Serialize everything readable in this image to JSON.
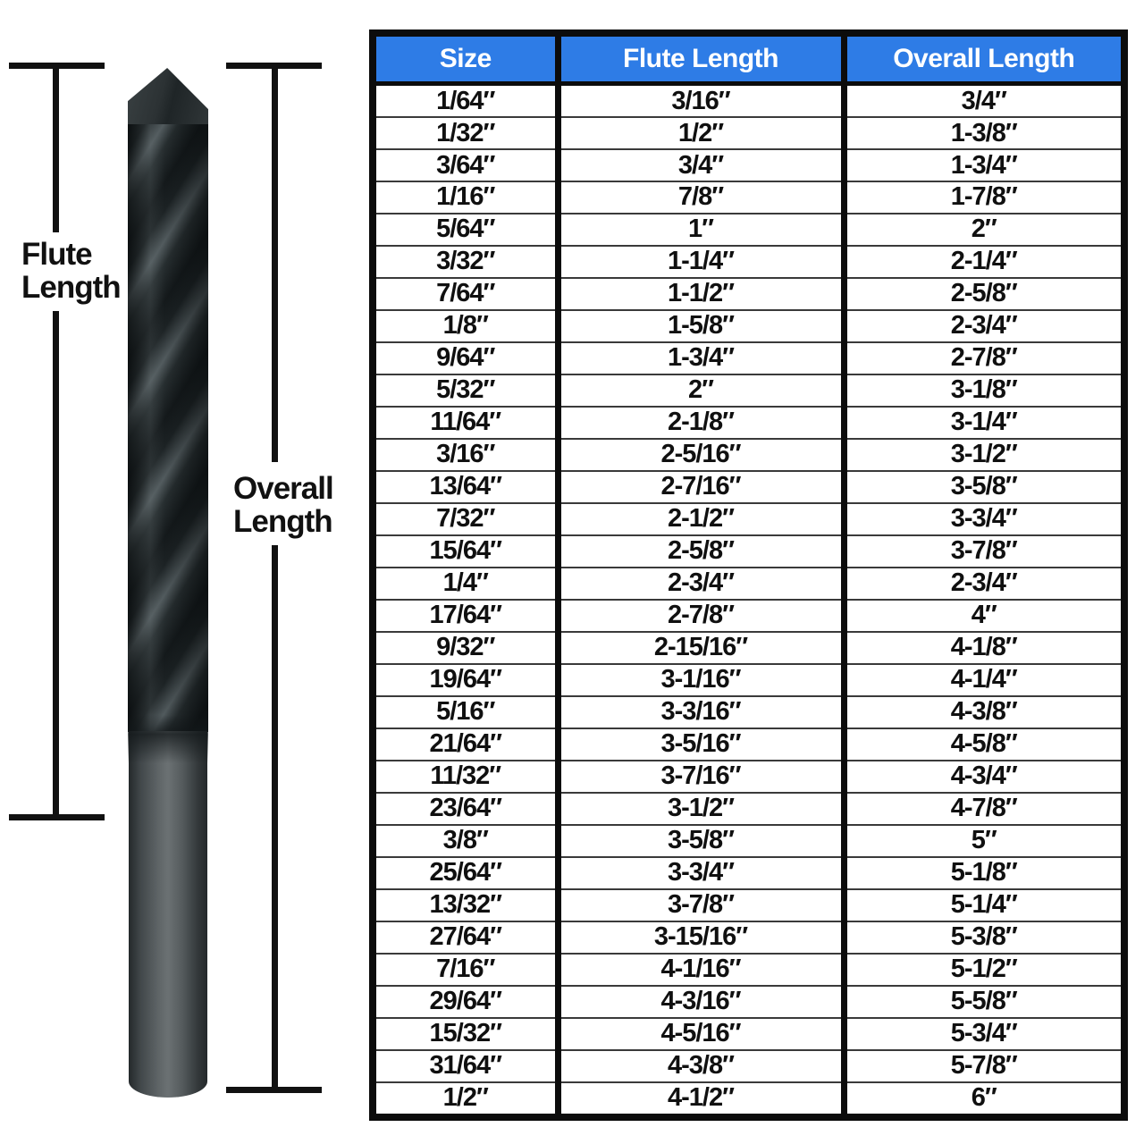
{
  "colors": {
    "header_bg": "#2e7ce6",
    "header_text": "#ffffff",
    "grid_border": "#0c0c0c",
    "row_line": "#3a3a3a",
    "dimension_line": "#111111"
  },
  "chart_data": {
    "type": "table",
    "columns": [
      "Size",
      "Flute Length",
      "Overall Length"
    ],
    "annotations": [
      "Flute Length",
      "Overall Length"
    ],
    "rows": [
      [
        "1/64″",
        "3/16″",
        "3/4″"
      ],
      [
        "1/32″",
        "1/2″",
        "1-3/8″"
      ],
      [
        "3/64″",
        "3/4″",
        "1-3/4″"
      ],
      [
        "1/16″",
        "7/8″",
        "1-7/8″"
      ],
      [
        "5/64″",
        "1″",
        "2″"
      ],
      [
        "3/32″",
        "1-1/4″",
        "2-1/4″"
      ],
      [
        "7/64″",
        "1-1/2″",
        "2-5/8″"
      ],
      [
        "1/8″",
        "1-5/8″",
        "2-3/4″"
      ],
      [
        "9/64″",
        "1-3/4″",
        "2-7/8″"
      ],
      [
        "5/32″",
        "2″",
        "3-1/8″"
      ],
      [
        "11/64″",
        "2-1/8″",
        "3-1/4″"
      ],
      [
        "3/16″",
        "2-5/16″",
        "3-1/2″"
      ],
      [
        "13/64″",
        "2-7/16″",
        "3-5/8″"
      ],
      [
        "7/32″",
        "2-1/2″",
        "3-3/4″"
      ],
      [
        "15/64″",
        "2-5/8″",
        "3-7/8″"
      ],
      [
        "1/4″",
        "2-3/4″",
        "2-3/4″"
      ],
      [
        "17/64″",
        "2-7/8″",
        "4″"
      ],
      [
        "9/32″",
        "2-15/16″",
        "4-1/8″"
      ],
      [
        "19/64″",
        "3-1/16″",
        "4-1/4″"
      ],
      [
        "5/16″",
        "3-3/16″",
        "4-3/8″"
      ],
      [
        "21/64″",
        "3-5/16″",
        "4-5/8″"
      ],
      [
        "11/32″",
        "3-7/16″",
        "4-3/4″"
      ],
      [
        "23/64″",
        "3-1/2″",
        "4-7/8″"
      ],
      [
        "3/8″",
        "3-5/8″",
        "5″"
      ],
      [
        "25/64″",
        "3-3/4″",
        "5-1/8″"
      ],
      [
        "13/32″",
        "3-7/8″",
        "5-1/4″"
      ],
      [
        "27/64″",
        "3-15/16″",
        "5-3/8″"
      ],
      [
        "7/16″",
        "4-1/16″",
        "5-1/2″"
      ],
      [
        "29/64″",
        "4-3/16″",
        "5-5/8″"
      ],
      [
        "15/32″",
        "4-5/16″",
        "5-3/4″"
      ],
      [
        "31/64″",
        "4-3/8″",
        "5-7/8″"
      ],
      [
        "1/2″",
        "4-1/2″",
        "6″"
      ]
    ]
  }
}
